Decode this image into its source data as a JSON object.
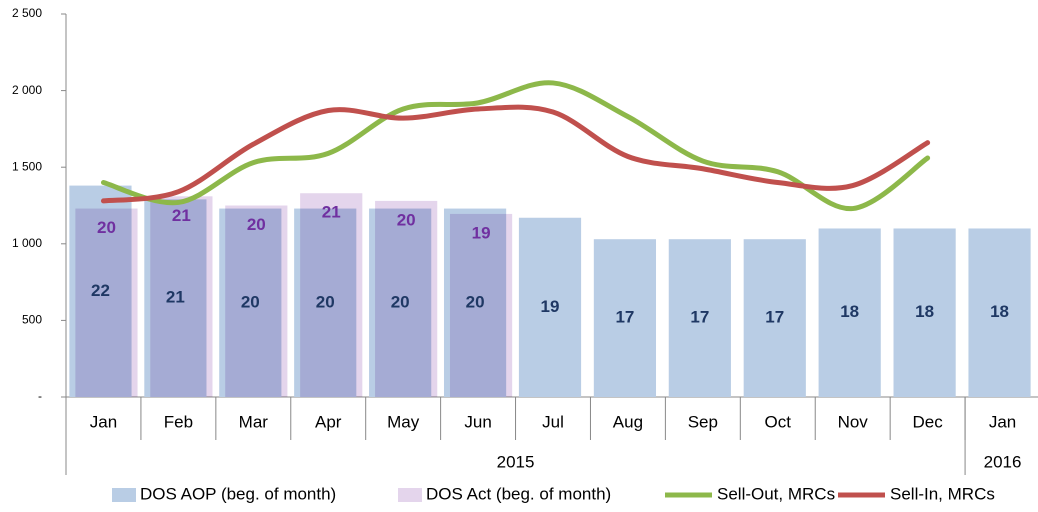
{
  "chart_data": {
    "type": "bar_line",
    "categories": [
      "Jan",
      "Feb",
      "Mar",
      "Apr",
      "May",
      "Jun",
      "Jul",
      "Aug",
      "Sep",
      "Oct",
      "Nov",
      "Dec",
      "Jan"
    ],
    "x_groups": [
      {
        "label": "2015",
        "span": 12
      },
      {
        "label": "2016",
        "span": 1
      }
    ],
    "ylim": [
      0,
      2500
    ],
    "yticks": [
      {
        "value": 0,
        "label": "-"
      },
      500,
      {
        "value": 1000,
        "label": "1 000"
      },
      {
        "value": 1500,
        "label": "1 500"
      },
      {
        "value": 2000,
        "label": "2 000"
      },
      {
        "value": 2500,
        "label": "2 500"
      }
    ],
    "series": [
      {
        "name": "DOS AOP (beg. of month)",
        "type": "bar",
        "color": "#b9cde5",
        "label_color": "#1f3864",
        "values": [
          1380,
          1290,
          1230,
          1230,
          1230,
          1230,
          1170,
          1030,
          1030,
          1030,
          1100,
          1100,
          1100
        ],
        "labels": [
          22,
          21,
          20,
          20,
          20,
          20,
          19,
          17,
          17,
          17,
          18,
          18,
          18
        ]
      },
      {
        "name": "DOS Act (beg. of month)",
        "type": "bar",
        "color": "#e4d5ec",
        "label_color": "#7030a0",
        "values": [
          1230,
          1310,
          1250,
          1330,
          1280,
          1195,
          null,
          null,
          null,
          null,
          null,
          null,
          null
        ],
        "labels": [
          20,
          21,
          20,
          21,
          20,
          19,
          null,
          null,
          null,
          null,
          null,
          null,
          null
        ]
      },
      {
        "name": "Sell-Out, MRCs",
        "type": "line",
        "color": "#8db84a",
        "values": [
          1400,
          1270,
          1530,
          1590,
          1880,
          1920,
          2050,
          1830,
          1540,
          1470,
          1230,
          1560,
          null
        ]
      },
      {
        "name": "Sell-In, MRCs",
        "type": "line",
        "color": "#c0504d",
        "values": [
          1280,
          1340,
          1650,
          1870,
          1820,
          1880,
          1860,
          1570,
          1490,
          1400,
          1380,
          1660,
          null
        ]
      }
    ]
  }
}
